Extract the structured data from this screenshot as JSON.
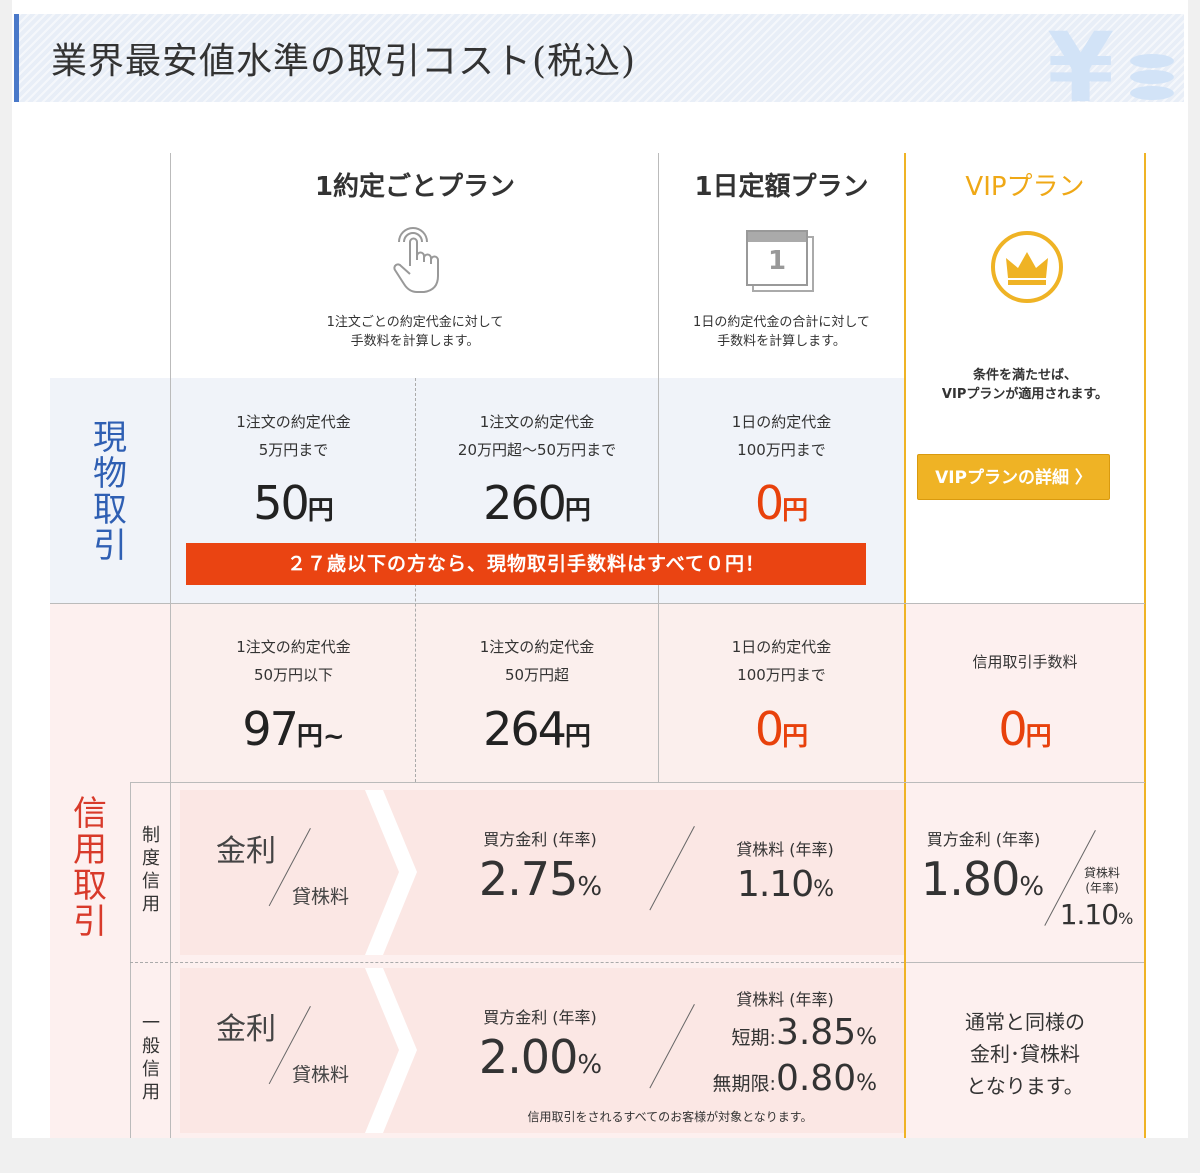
{
  "header": {
    "title": "業界最安値水準の取引コスト(税込)",
    "bg_icon": "yen-coins-icon"
  },
  "colors": {
    "accent_blue": "#4a79c9",
    "red": "#e8410c",
    "vip_gold": "#efb325",
    "genbutsu_bg": "#f0f3f9",
    "shinyo_bg": "#fdf0ef"
  },
  "plans": {
    "per_trade": {
      "title": "1約定ごとプラン",
      "icon": "tap-finger-icon",
      "desc_1": "1注文ごとの約定代金に対して",
      "desc_2": "手数料を計算します。"
    },
    "daily": {
      "title": "1日定額プラン",
      "icon": "calendar-icon",
      "calendar_num": "1",
      "desc_1": "1日の約定代金の合計に対して",
      "desc_2": "手数料を計算します。"
    },
    "vip": {
      "title": "VIPプラン",
      "icon": "crown-icon",
      "desc_1": "条件を満たせば、",
      "desc_2": "VIPプランが適用されます。",
      "button": "VIPプランの詳細 〉"
    }
  },
  "genbutsu": {
    "label": [
      "現",
      "物",
      "取",
      "引"
    ],
    "cells": [
      {
        "l1": "1注文の約定代金",
        "l2": "5万円まで",
        "price": "50",
        "unit": "円"
      },
      {
        "l1": "1注文の約定代金",
        "l2": "20万円超～50万円まで",
        "price": "260",
        "unit": "円"
      },
      {
        "l1": "1日の約定代金",
        "l2": "100万円まで",
        "price": "0",
        "unit": "円"
      }
    ],
    "banner": "２７歳以下の方なら、現物取引手数料はすべて０円！"
  },
  "shinyo": {
    "label": [
      "信",
      "用",
      "取",
      "引"
    ],
    "cells": [
      {
        "l1": "1注文の約定代金",
        "l2": "50万円以下",
        "price": "97",
        "unit": "円~"
      },
      {
        "l1": "1注文の約定代金",
        "l2": "50万円超",
        "price": "264",
        "unit": "円"
      },
      {
        "l1": "1日の約定代金",
        "l2": "100万円まで",
        "price": "0",
        "unit": "円"
      },
      {
        "l1": "信用取引手数料",
        "price": "0",
        "unit": "円"
      }
    ],
    "kinri": "金利",
    "kashikabu": "貸株料",
    "seido": {
      "label": [
        "制",
        "度",
        "信",
        "用"
      ],
      "buy_label": "買方金利 (年率)",
      "buy_rate": "2.75",
      "pct": "%",
      "lend_label": "貸株料 (年率)",
      "lend_rate": "1.10",
      "vip_buy_label": "買方金利 (年率)",
      "vip_buy_rate": "1.80",
      "vip_lend_label_1": "貸株料",
      "vip_lend_label_2": "(年率)",
      "vip_lend_rate": "1.10"
    },
    "ippan": {
      "label": [
        "一",
        "般",
        "信",
        "用"
      ],
      "buy_label": "買方金利 (年率)",
      "buy_rate": "2.00",
      "lend_label": "貸株料 (年率)",
      "short_label": "短期:",
      "short_rate": "3.85",
      "indef_label": "無期限:",
      "indef_rate": "0.80",
      "note": "信用取引をされるすべてのお客様が対象となります。",
      "vip_1": "通常と同様の",
      "vip_2": "金利･貸株料",
      "vip_3": "となります。"
    }
  }
}
